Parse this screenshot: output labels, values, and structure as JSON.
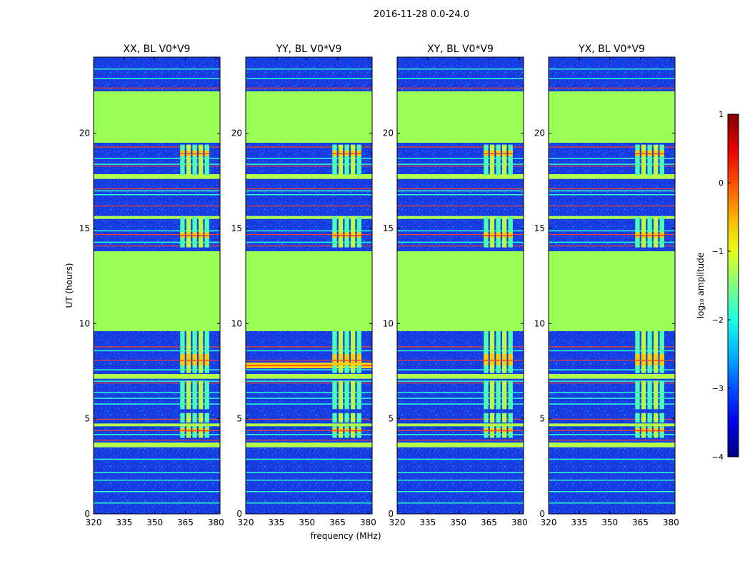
{
  "figure": {
    "suptitle": "2016-11-28 0.0-24.0",
    "colors": {
      "flag_fill": "#99ff55",
      "background_low": "#1a3adf",
      "bright_band": "#ffcc00",
      "red_line": "#ff4422",
      "axis": "#000000"
    }
  },
  "chart_data": {
    "type": "heatmap",
    "baseline": "V0*V9",
    "xlabel": "frequency (MHz)",
    "ylabel": "UT (hours)",
    "xlim": [
      320,
      382
    ],
    "ylim": [
      0,
      24
    ],
    "xticks": [
      320,
      335,
      350,
      365,
      380
    ],
    "yticks": [
      0,
      5,
      10,
      15,
      20
    ],
    "panels": [
      {
        "title": "XX, BL V0*V9",
        "pol": "XX"
      },
      {
        "title": "YY, BL V0*V9",
        "pol": "YY"
      },
      {
        "title": "XY, BL V0*V9",
        "pol": "XY"
      },
      {
        "title": "YX, BL V0*V9",
        "pol": "YX"
      }
    ],
    "flagged_ut_ranges": [
      [
        9.6,
        13.8
      ],
      [
        19.5,
        22.2
      ]
    ],
    "rfi_band_mhz": [
      362,
      378
    ],
    "colorbar": {
      "label": "log₁₀ amplitude",
      "min": -4,
      "max": 1,
      "ticks": [
        1,
        0,
        -1,
        -2,
        -3,
        -4
      ],
      "tick_labels": [
        "1",
        "0",
        "−1",
        "−2",
        "−3",
        "−4"
      ],
      "colormap": "jet"
    }
  }
}
